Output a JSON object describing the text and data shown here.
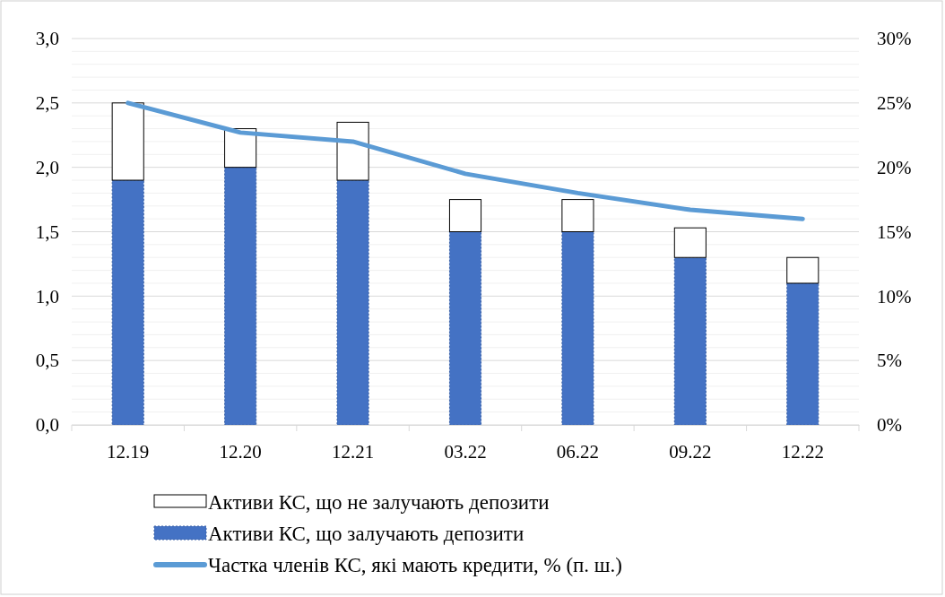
{
  "chart_data": {
    "type": "bar",
    "stacked": true,
    "categories": [
      "12.19",
      "12.20",
      "12.21",
      "03.22",
      "06.22",
      "09.22",
      "12.22"
    ],
    "series": [
      {
        "name": "Активи КС, що залучають депозити",
        "color": "#4472c4",
        "values": [
          1.9,
          2.0,
          1.9,
          1.5,
          1.5,
          1.3,
          1.1
        ]
      },
      {
        "name": "Активи КС, що не залучають депозити",
        "color": "#ffffff",
        "values": [
          0.6,
          0.3,
          0.45,
          0.25,
          0.25,
          0.23,
          0.2
        ]
      },
      {
        "name": "Частка членів КС, які мають кредити, % (п. ш.)",
        "type": "line",
        "axis": "y2",
        "color": "#5b9bd5",
        "values": [
          25,
          22.7,
          22,
          19.5,
          18,
          16.7,
          16
        ]
      }
    ],
    "ylim": [
      0,
      3
    ],
    "yticks": [
      {
        "value": 0,
        "label": "0,0"
      },
      {
        "value": 0.5,
        "label": "0,5"
      },
      {
        "value": 1,
        "label": "1,0"
      },
      {
        "value": 1.5,
        "label": "1,5"
      },
      {
        "value": 2,
        "label": "2,0"
      },
      {
        "value": 2.5,
        "label": "2,5"
      },
      {
        "value": 3,
        "label": "3,0"
      }
    ],
    "y2lim": [
      0,
      30
    ],
    "y2ticks": [
      {
        "value": 0,
        "label": "0%"
      },
      {
        "value": 5,
        "label": "5%"
      },
      {
        "value": 10,
        "label": "10%"
      },
      {
        "value": 15,
        "label": "15%"
      },
      {
        "value": 20,
        "label": "20%"
      },
      {
        "value": 25,
        "label": "25%"
      },
      {
        "value": 30,
        "label": "30%"
      }
    ],
    "grid": "y",
    "legend": "bottom",
    "marker": "none"
  }
}
